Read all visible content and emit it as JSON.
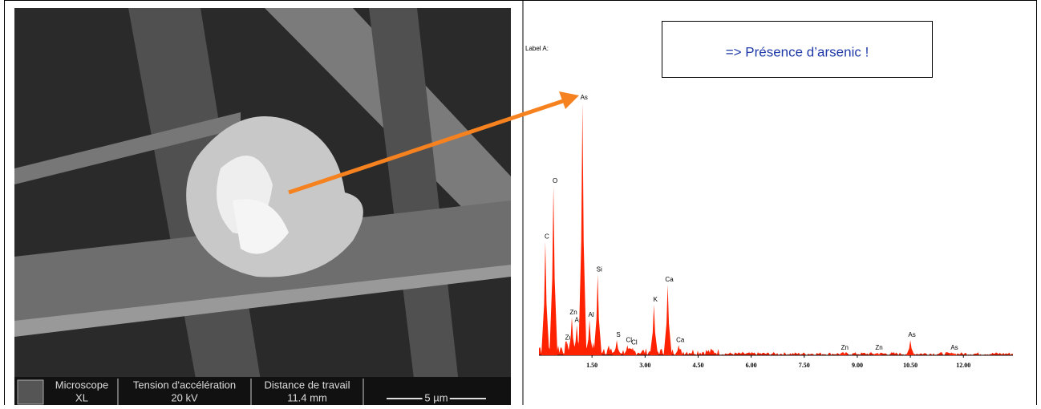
{
  "sem": {
    "microscope_label": "Microscope",
    "microscope_value": "XL",
    "voltage_label": "Tension d'accélération",
    "voltage_value": "20 kV",
    "distance_label": "Distance de travail",
    "distance_value": "11.4 mm",
    "scale_bar": "5 µm"
  },
  "chart_data": {
    "type": "spectrum",
    "label": "Label A:",
    "annotation": "=> Présence d’arsenic !",
    "color": "#ff2200",
    "xlim": [
      0,
      13.4
    ],
    "ylim": [
      0,
      100
    ],
    "xticks": [
      {
        "value": 1.5,
        "label": "1.50"
      },
      {
        "value": 3,
        "label": "3.00"
      },
      {
        "value": 4.5,
        "label": "4.50"
      },
      {
        "value": 6,
        "label": "6.00"
      },
      {
        "value": 7.5,
        "label": "7.50"
      },
      {
        "value": 9,
        "label": "9.00"
      },
      {
        "value": 10.5,
        "label": "10.50"
      },
      {
        "value": 12,
        "label": "12.00"
      }
    ],
    "peaks": {
      "labels": [
        "C",
        "O",
        "Zu",
        "Zn",
        "As",
        "As",
        "Al",
        "Si",
        "S",
        "Cl",
        "Cl",
        "K",
        "Ca",
        "Ca",
        "Zn",
        "Zn",
        "As",
        "As"
      ],
      "x": [
        0.18,
        0.41,
        0.8,
        0.93,
        1.07,
        1.23,
        1.43,
        1.66,
        2.2,
        2.5,
        2.65,
        3.25,
        3.64,
        3.95,
        8.6,
        9.57,
        10.5,
        11.7
      ],
      "values": [
        45,
        67,
        5,
        15,
        12,
        100,
        14,
        32,
        6,
        4,
        3,
        20,
        28,
        4,
        1,
        1,
        6,
        1
      ]
    }
  }
}
